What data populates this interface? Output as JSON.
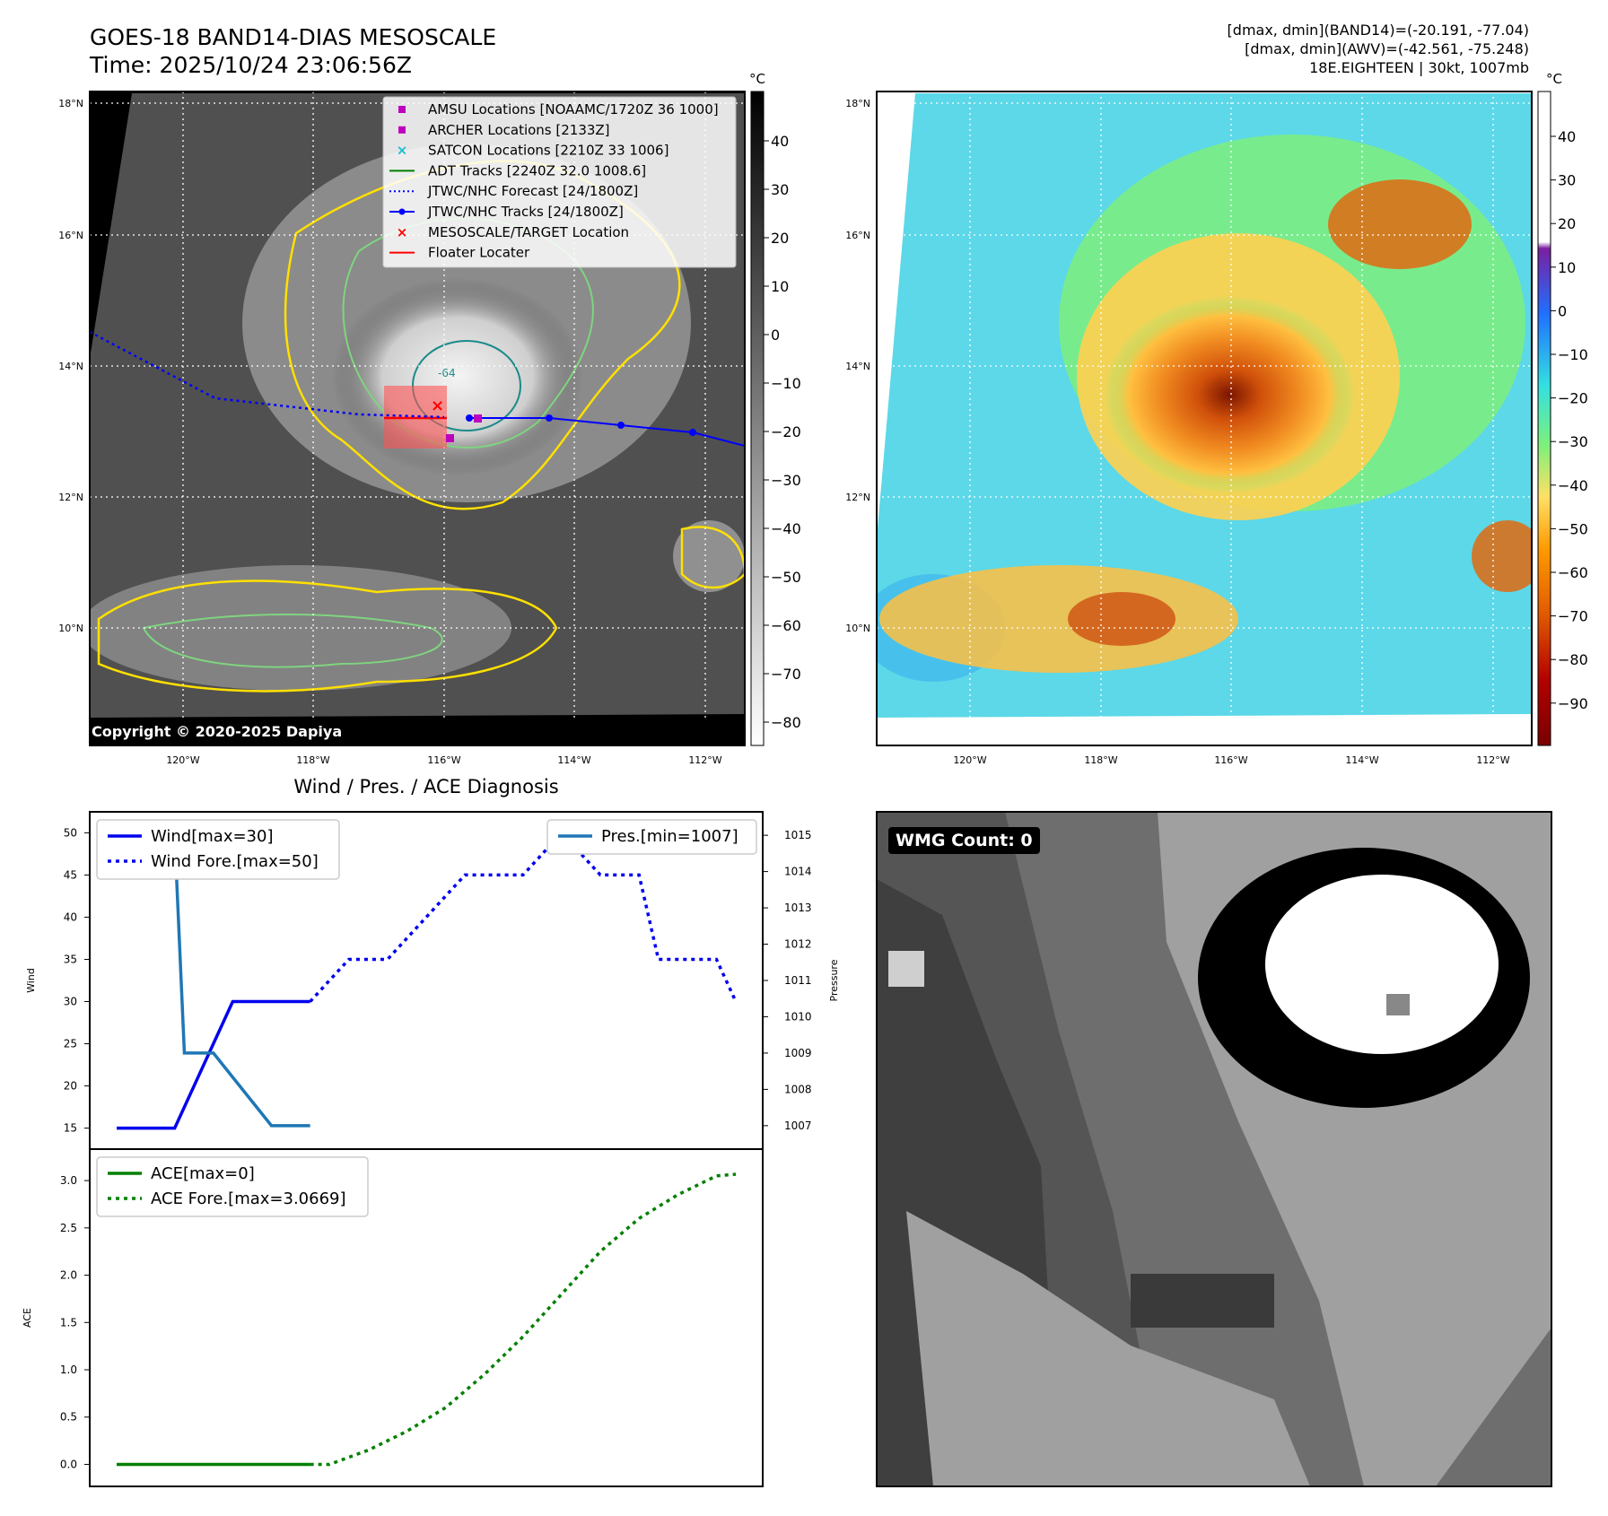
{
  "header": {
    "title": "GOES-18 BAND14-DIAS MESOSCALE",
    "time": "Time: 2025/10/24 23:06:56Z",
    "stats_line1": "[dmax, dmin](BAND14)=(-20.191, -77.04)",
    "stats_line2": "[dmax, dmin](AWV)=(-42.561, -75.248)",
    "storm": "18E.EIGHTEEN | 30kt, 1007mb"
  },
  "map": {
    "lat_labels": [
      "18°N",
      "16°N",
      "14°N",
      "12°N",
      "10°N"
    ],
    "lon_labels": [
      "120°W",
      "118°W",
      "116°W",
      "114°W",
      "112°W"
    ],
    "legend": [
      {
        "label": "AMSU Locations [NOAAMC/1720Z 36 1000]",
        "color": "#bf00bf",
        "kind": "square"
      },
      {
        "label": "ARCHER Locations [2133Z]",
        "color": "#bf00bf",
        "kind": "square"
      },
      {
        "label": "SATCON Locations [2210Z 33 1006]",
        "color": "#17becf",
        "kind": "x"
      },
      {
        "label": "ADT Tracks [2240Z 32.0 1008.6]",
        "color": "#008000",
        "kind": "line"
      },
      {
        "label": "JTWC/NHC Forecast [24/1800Z]",
        "color": "#0000ff",
        "kind": "dotted"
      },
      {
        "label": "JTWC/NHC Tracks [24/1800Z]",
        "color": "#0000ff",
        "kind": "line-dot"
      },
      {
        "label": "MESOSCALE/TARGET Location",
        "color": "#ff0000",
        "kind": "x"
      },
      {
        "label": "Floater Locater",
        "color": "#ff0000",
        "kind": "line"
      }
    ],
    "copyright": "Copyright © 2020-2025 Dapiya",
    "colorbar1_unit": "°C",
    "colorbar1_ticks": [
      "40",
      "30",
      "20",
      "10",
      "0",
      "−10",
      "−20",
      "−30",
      "−40",
      "−50",
      "−60",
      "−70",
      "−80"
    ],
    "colorbar2_unit": "°C",
    "colorbar2_ticks": [
      "40",
      "30",
      "20",
      "10",
      "0",
      "−10",
      "−20",
      "−30",
      "−40",
      "−50",
      "−60",
      "−70",
      "−80",
      "−90"
    ]
  },
  "wmg": {
    "label": "WMG Count: 0"
  },
  "chart_data": [
    {
      "type": "line",
      "title": "Wind / Pres. / ACE Diagnosis",
      "ylabel": "Wind",
      "y2label": "Pressure",
      "ylim": [
        14,
        51
      ],
      "y2lim": [
        1006.7,
        1015.3
      ],
      "yticks": [
        "50",
        "45",
        "40",
        "35",
        "30",
        "25",
        "20",
        "15"
      ],
      "y2ticks": [
        "1015",
        "1014",
        "1013",
        "1012",
        "1011",
        "1010",
        "1009",
        "1008",
        "1007"
      ],
      "series": [
        {
          "name": "Wind[max=30]",
          "color": "#0000ee",
          "style": "solid",
          "axis": "left",
          "x": [
            0,
            3,
            4,
            5,
            6,
            10
          ],
          "values": [
            15,
            15,
            20,
            25,
            30,
            30
          ]
        },
        {
          "name": "Wind Fore.[max=50]",
          "color": "#0000ee",
          "style": "dotted",
          "axis": "left",
          "x": [
            10,
            12,
            14,
            18,
            21,
            23,
            25,
            26,
            27,
            28,
            30,
            31,
            32
          ],
          "values": [
            30,
            35,
            35,
            45,
            45,
            50,
            45,
            45,
            45,
            35,
            35,
            35,
            30
          ]
        },
        {
          "name": "Pres.[min=1007]",
          "color": "#1f77b4",
          "style": "solid",
          "axis": "right",
          "x": [
            1.5,
            3,
            3.5,
            5,
            8,
            10
          ],
          "values": [
            1015,
            1015,
            1009,
            1009,
            1007,
            1007
          ]
        }
      ]
    },
    {
      "type": "line",
      "ylabel": "ACE",
      "ylim": [
        -0.1,
        3.2
      ],
      "yticks": [
        "3.0",
        "2.5",
        "2.0",
        "1.5",
        "1.0",
        "0.5",
        "0.0"
      ],
      "series": [
        {
          "name": "ACE[max=0]",
          "color": "#008000",
          "style": "solid",
          "x": [
            0,
            10
          ],
          "values": [
            0,
            0
          ]
        },
        {
          "name": "ACE Fore.[max=3.0669]",
          "color": "#008000",
          "style": "dotted",
          "x": [
            10,
            11,
            13,
            15,
            17,
            19,
            21,
            23,
            25,
            27,
            29,
            31,
            32
          ],
          "values": [
            0,
            0,
            0.15,
            0.35,
            0.6,
            0.95,
            1.35,
            1.8,
            2.25,
            2.6,
            2.85,
            3.05,
            3.0669
          ]
        }
      ]
    }
  ]
}
